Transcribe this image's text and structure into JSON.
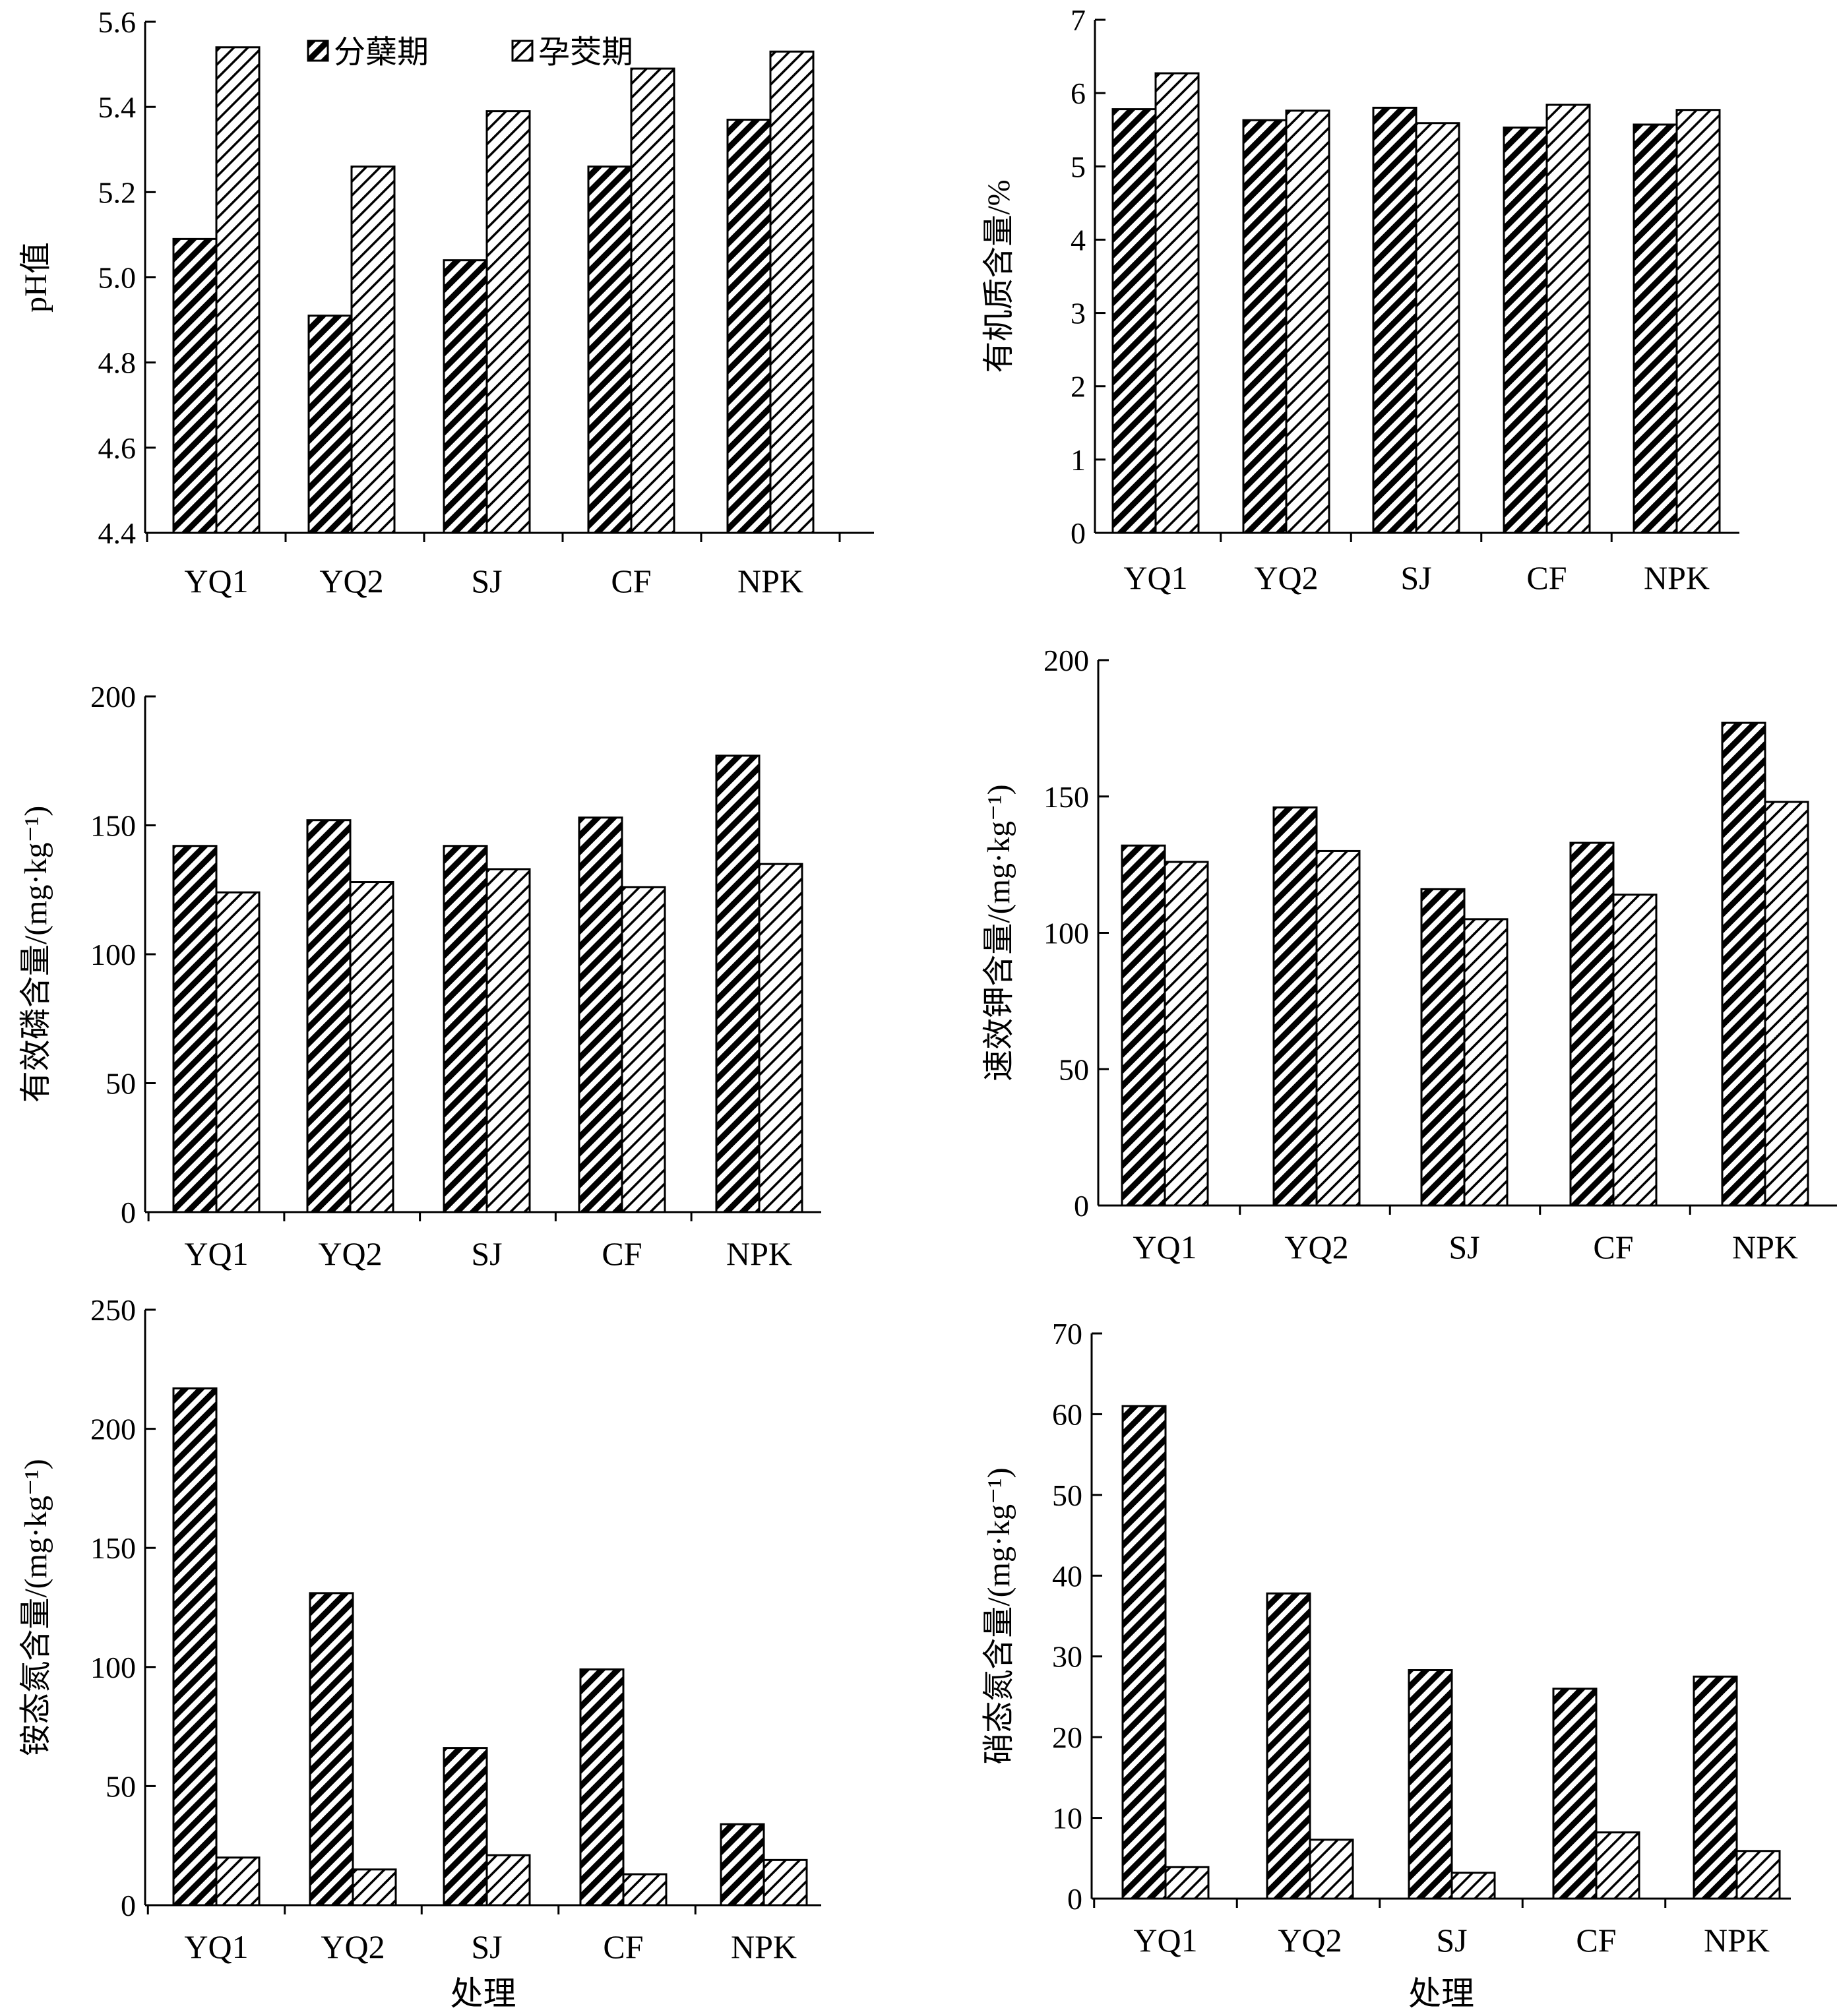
{
  "legend": [
    {
      "name": "分蘖期",
      "pattern": "dense"
    },
    {
      "name": "孕茭期",
      "pattern": "sparse"
    }
  ],
  "chart_data": [
    {
      "type": "bar",
      "ylabel": "pH值",
      "xlabel": "",
      "ylim": [
        4.4,
        5.6
      ],
      "yticks": [
        4.4,
        4.6,
        4.8,
        5.0,
        5.2,
        5.4,
        5.6
      ],
      "ytick_labels": [
        "4.4",
        "4.6",
        "4.8",
        "5.0",
        "5.2",
        "5.4",
        "5.6"
      ],
      "categories": [
        "YQ1",
        "YQ2",
        "SJ",
        "CF",
        "NPK"
      ],
      "series": [
        {
          "name": "分蘖期",
          "values": [
            5.09,
            4.91,
            5.04,
            5.26,
            5.37
          ]
        },
        {
          "name": "孕茭期",
          "values": [
            5.54,
            5.26,
            5.39,
            5.49,
            5.53
          ]
        }
      ],
      "legend_position": "top-center"
    },
    {
      "type": "bar",
      "ylabel": "有机质含量/%",
      "xlabel": "",
      "ylim": [
        0,
        7
      ],
      "yticks": [
        0,
        1,
        2,
        3,
        4,
        5,
        6,
        7
      ],
      "ytick_labels": [
        "0",
        "1",
        "2",
        "3",
        "4",
        "5",
        "6",
        "7"
      ],
      "categories": [
        "YQ1",
        "YQ2",
        "SJ",
        "CF",
        "NPK"
      ],
      "series": [
        {
          "name": "分蘖期",
          "values": [
            5.78,
            5.63,
            5.8,
            5.53,
            5.57
          ]
        },
        {
          "name": "孕茭期",
          "values": [
            6.27,
            5.76,
            5.59,
            5.84,
            5.77
          ]
        }
      ]
    },
    {
      "type": "bar",
      "ylabel": "有效磷含量/(mg·kg⁻¹)",
      "xlabel": "",
      "ylim": [
        0,
        200
      ],
      "yticks": [
        0,
        50,
        100,
        150,
        200
      ],
      "ytick_labels": [
        "0",
        "50",
        "100",
        "150",
        "200"
      ],
      "categories": [
        "YQ1",
        "YQ2",
        "SJ",
        "CF",
        "NPK"
      ],
      "series": [
        {
          "name": "分蘖期",
          "values": [
            142,
            152,
            142,
            153,
            177
          ]
        },
        {
          "name": "孕茭期",
          "values": [
            124,
            128,
            133,
            126,
            135
          ]
        }
      ]
    },
    {
      "type": "bar",
      "ylabel": "速效钾含量/(mg·kg⁻¹)",
      "xlabel": "",
      "ylim": [
        0,
        200
      ],
      "yticks": [
        0,
        50,
        100,
        150,
        200
      ],
      "ytick_labels": [
        "0",
        "50",
        "100",
        "150",
        "200"
      ],
      "categories": [
        "YQ1",
        "YQ2",
        "SJ",
        "CF",
        "NPK"
      ],
      "series": [
        {
          "name": "分蘖期",
          "values": [
            132,
            146,
            116,
            133,
            177
          ]
        },
        {
          "name": "孕茭期",
          "values": [
            126,
            130,
            105,
            114,
            148
          ]
        }
      ]
    },
    {
      "type": "bar",
      "ylabel": "铵态氮含量/(mg·kg⁻¹)",
      "xlabel": "处理",
      "ylim": [
        0,
        250
      ],
      "yticks": [
        0,
        50,
        100,
        150,
        200,
        250
      ],
      "ytick_labels": [
        "0",
        "50",
        "100",
        "150",
        "200",
        "250"
      ],
      "categories": [
        "YQ1",
        "YQ2",
        "SJ",
        "CF",
        "NPK"
      ],
      "series": [
        {
          "name": "分蘖期",
          "values": [
            217,
            131,
            66,
            99,
            34
          ]
        },
        {
          "name": "孕茭期",
          "values": [
            20,
            15,
            21,
            13,
            19
          ]
        }
      ]
    },
    {
      "type": "bar",
      "ylabel": "硝态氮含量/(mg·kg⁻¹)",
      "xlabel": "处理",
      "ylim": [
        0,
        70
      ],
      "yticks": [
        0,
        10,
        20,
        30,
        40,
        50,
        60,
        70
      ],
      "ytick_labels": [
        "0",
        "10",
        "20",
        "30",
        "40",
        "50",
        "60",
        "70"
      ],
      "categories": [
        "YQ1",
        "YQ2",
        "SJ",
        "CF",
        "NPK"
      ],
      "series": [
        {
          "name": "分蘖期",
          "values": [
            61,
            37.8,
            28.3,
            26,
            27.5
          ]
        },
        {
          "name": "孕茭期",
          "values": [
            3.9,
            7.3,
            3.2,
            8.2,
            5.9
          ]
        }
      ]
    }
  ]
}
